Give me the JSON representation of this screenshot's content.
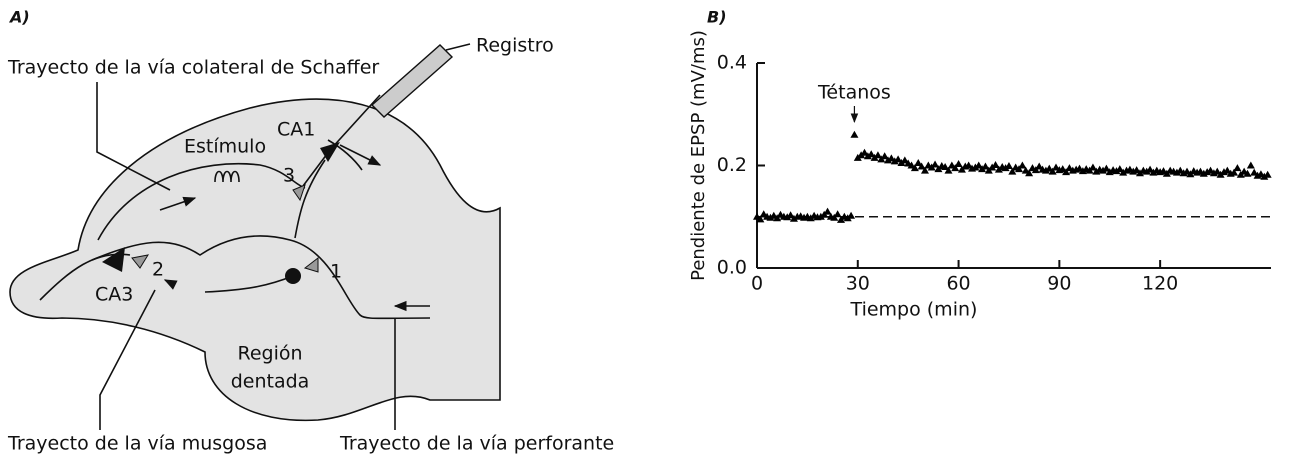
{
  "panel_a": {
    "label": "A)",
    "schaffer": "Trayecto de la vía colateral de Schaffer",
    "registro": "Registro",
    "estimulo": "Estímulo",
    "ca1": "CA1",
    "ca3": "CA3",
    "n1": "1",
    "n2": "2",
    "n3": "3",
    "region": [
      "Región",
      "dentada"
    ],
    "musgosa": "Trayecto de la vía musgosa",
    "perforante": "Trayecto de la vía perforante"
  },
  "panel_b": {
    "label": "B)"
  },
  "chart_data": {
    "type": "scatter",
    "x_label": "Tiempo (min)",
    "y_label": "Pendiente de EPSP (mV/ms)",
    "color": "#000000",
    "marker": "triangle",
    "xlim": [
      0,
      153
    ],
    "ylim": [
      0,
      0.4
    ],
    "xticks": [
      0,
      30,
      60,
      90,
      120
    ],
    "yticks": [
      {
        "value": 0,
        "label": "0.0"
      },
      0.2,
      0.4
    ],
    "reference_lines": [
      {
        "y": 0.1,
        "style": "dashed"
      }
    ],
    "annotations": [
      {
        "text": "Tétanos",
        "x": 29
      }
    ],
    "x": [
      0,
      1,
      2,
      3,
      4,
      5,
      6,
      7,
      8,
      9,
      10,
      11,
      12,
      13,
      14,
      15,
      16,
      17,
      18,
      19,
      20,
      21,
      22,
      23,
      24,
      25,
      26,
      27,
      28,
      29,
      30,
      31,
      32,
      33,
      34,
      35,
      36,
      37,
      38,
      39,
      40,
      41,
      42,
      43,
      44,
      45,
      46,
      47,
      48,
      49,
      50,
      51,
      52,
      53,
      54,
      55,
      56,
      57,
      58,
      59,
      60,
      61,
      62,
      63,
      64,
      65,
      66,
      67,
      68,
      69,
      70,
      71,
      72,
      73,
      74,
      75,
      76,
      77,
      78,
      79,
      80,
      81,
      82,
      83,
      84,
      85,
      86,
      87,
      88,
      89,
      90,
      91,
      92,
      93,
      94,
      95,
      96,
      97,
      98,
      99,
      100,
      101,
      102,
      103,
      104,
      105,
      106,
      107,
      108,
      109,
      110,
      111,
      112,
      113,
      114,
      115,
      116,
      117,
      118,
      119,
      120,
      121,
      122,
      123,
      124,
      125,
      126,
      127,
      128,
      129,
      130,
      131,
      132,
      133,
      134,
      135,
      136,
      137,
      138,
      139,
      140,
      141,
      142,
      143,
      144,
      145,
      146,
      147,
      148,
      149,
      150,
      151,
      152
    ],
    "values": [
      0.1,
      0.095,
      0.105,
      0.1,
      0.098,
      0.102,
      0.097,
      0.104,
      0.1,
      0.099,
      0.103,
      0.096,
      0.1,
      0.101,
      0.098,
      0.1,
      0.097,
      0.102,
      0.099,
      0.1,
      0.104,
      0.11,
      0.1,
      0.098,
      0.105,
      0.094,
      0.1,
      0.097,
      0.102,
      0.26,
      0.215,
      0.22,
      0.225,
      0.218,
      0.222,
      0.215,
      0.22,
      0.212,
      0.218,
      0.21,
      0.214,
      0.208,
      0.212,
      0.205,
      0.21,
      0.204,
      0.2,
      0.195,
      0.205,
      0.198,
      0.19,
      0.2,
      0.196,
      0.202,
      0.193,
      0.199,
      0.197,
      0.19,
      0.2,
      0.195,
      0.203,
      0.192,
      0.198,
      0.2,
      0.194,
      0.196,
      0.2,
      0.193,
      0.198,
      0.19,
      0.196,
      0.201,
      0.192,
      0.197,
      0.195,
      0.199,
      0.188,
      0.196,
      0.193,
      0.2,
      0.19,
      0.185,
      0.195,
      0.191,
      0.198,
      0.192,
      0.19,
      0.194,
      0.188,
      0.196,
      0.191,
      0.193,
      0.187,
      0.195,
      0.19,
      0.192,
      0.194,
      0.189,
      0.193,
      0.19,
      0.196,
      0.188,
      0.192,
      0.19,
      0.194,
      0.187,
      0.191,
      0.189,
      0.193,
      0.186,
      0.19,
      0.192,
      0.188,
      0.191,
      0.185,
      0.19,
      0.188,
      0.192,
      0.186,
      0.19,
      0.187,
      0.189,
      0.184,
      0.19,
      0.188,
      0.186,
      0.19,
      0.185,
      0.188,
      0.183,
      0.189,
      0.186,
      0.188,
      0.184,
      0.187,
      0.19,
      0.185,
      0.188,
      0.182,
      0.187,
      0.19,
      0.184,
      0.186,
      0.195,
      0.182,
      0.188,
      0.184,
      0.2,
      0.186,
      0.18,
      0.183,
      0.178,
      0.182
    ]
  }
}
